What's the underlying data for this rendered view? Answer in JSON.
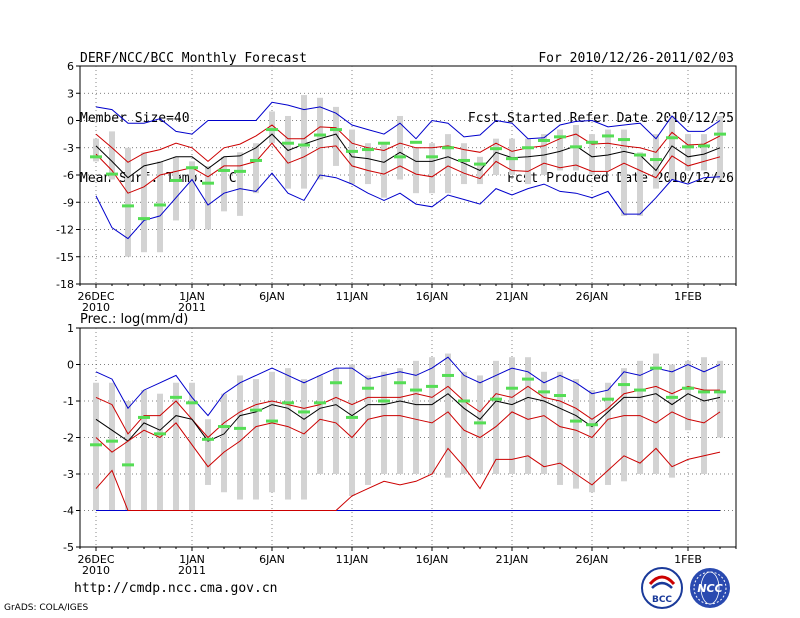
{
  "header": {
    "title": "DERF/NCC/BCC Monthly Forecast",
    "member_size": "Member Size=40",
    "period": "For 2010/12/26-2011/02/03",
    "start_date": "Fcst Started Refer Date 2010/12/25",
    "produced_date": "Fcst Produced Date 2010/12/26"
  },
  "footer": {
    "url": "http://cmdp.ncc.cma.gov.cn",
    "credit": "GrADS: COLA/IGES",
    "logos": [
      "BCC",
      "NCC"
    ]
  },
  "colors": {
    "envelope": "#0000cc",
    "spread": "#cc0000",
    "mean": "#000000",
    "box": "#d3d3d3",
    "marker": "#55dd55",
    "grid": "#555555"
  },
  "chart_data": [
    {
      "type": "line",
      "title": "Mean Surf. Temp.: °C",
      "ylim": [
        -18,
        6
      ],
      "yticks": [
        6,
        3,
        0,
        -3,
        -6,
        -9,
        -12,
        -15,
        -18
      ],
      "xlim": [
        25,
        66
      ],
      "xticks": [
        {
          "day": 26,
          "label": "26DEC",
          "sub": "2010"
        },
        {
          "day": 32,
          "label": "1JAN",
          "sub": "2011"
        },
        {
          "day": 37,
          "label": "6JAN",
          "sub": ""
        },
        {
          "day": 42,
          "label": "11JAN",
          "sub": ""
        },
        {
          "day": 47,
          "label": "16JAN",
          "sub": ""
        },
        {
          "day": 52,
          "label": "21JAN",
          "sub": ""
        },
        {
          "day": 57,
          "label": "26JAN",
          "sub": ""
        },
        {
          "day": 63,
          "label": "1FEB",
          "sub": ""
        }
      ],
      "days": [
        26,
        27,
        28,
        29,
        30,
        31,
        32,
        33,
        34,
        35,
        36,
        37,
        38,
        39,
        40,
        41,
        42,
        43,
        44,
        45,
        46,
        47,
        48,
        49,
        50,
        51,
        52,
        53,
        54,
        55,
        56,
        57,
        58,
        59,
        60,
        61,
        62,
        63,
        64,
        65
      ],
      "series": [
        {
          "name": "max",
          "color": "envelope",
          "values": [
            1.5,
            1.2,
            -0.3,
            -0.3,
            0.2,
            -1.2,
            -1.5,
            0.0,
            0.0,
            0.0,
            0.0,
            2.0,
            1.7,
            1.2,
            1.5,
            0.8,
            -0.5,
            -1.0,
            -1.5,
            -0.3,
            -2.0,
            0.0,
            -0.3,
            -1.8,
            -1.6,
            0.0,
            -0.3,
            -2.0,
            -1.9,
            -0.5,
            -0.1,
            0.0,
            -0.7,
            -0.5,
            -0.3,
            -2.0,
            0.5,
            -1.2,
            -1.2,
            0.0
          ]
        },
        {
          "name": "upper",
          "color": "spread",
          "values": [
            -1.5,
            -3.0,
            -4.6,
            -3.6,
            -3.2,
            -2.5,
            -3.0,
            -4.5,
            -3.0,
            -2.6,
            -1.7,
            -0.5,
            -2.0,
            -2.0,
            -0.7,
            -0.8,
            -2.5,
            -3.0,
            -3.3,
            -2.5,
            -3.0,
            -3.0,
            -2.8,
            -3.2,
            -3.5,
            -2.5,
            -3.4,
            -3.0,
            -2.8,
            -2.0,
            -1.5,
            -2.6,
            -2.5,
            -2.8,
            -3.0,
            -3.5,
            -1.3,
            -2.7,
            -2.6,
            -1.7
          ]
        },
        {
          "name": "mean",
          "color": "mean",
          "values": [
            -2.8,
            -4.5,
            -6.3,
            -5.0,
            -4.6,
            -4.0,
            -4.0,
            -5.3,
            -4.0,
            -3.9,
            -3.0,
            -1.5,
            -3.3,
            -2.6,
            -2.0,
            -1.5,
            -4.0,
            -4.2,
            -4.6,
            -3.5,
            -4.5,
            -4.5,
            -4.0,
            -4.7,
            -5.5,
            -3.5,
            -4.1,
            -4.0,
            -3.8,
            -3.4,
            -2.8,
            -4.0,
            -3.8,
            -3.4,
            -3.8,
            -5.5,
            -2.8,
            -4.0,
            -3.7,
            -3.0
          ]
        },
        {
          "name": "lower",
          "color": "spread",
          "values": [
            -3.7,
            -5.5,
            -8.0,
            -7.3,
            -6.0,
            -5.6,
            -5.2,
            -6.2,
            -5.0,
            -5.0,
            -4.5,
            -2.5,
            -4.7,
            -4.0,
            -3.0,
            -2.8,
            -5.0,
            -5.5,
            -5.9,
            -5.0,
            -5.9,
            -6.2,
            -5.0,
            -5.8,
            -6.4,
            -4.5,
            -5.5,
            -5.6,
            -4.7,
            -5.2,
            -4.9,
            -5.6,
            -5.6,
            -4.7,
            -5.5,
            -6.3,
            -3.9,
            -5.0,
            -4.5,
            -4.0
          ]
        },
        {
          "name": "min",
          "color": "envelope",
          "values": [
            -8.3,
            -11.8,
            -13.0,
            -11.0,
            -10.5,
            -8.5,
            -6.5,
            -9.3,
            -8.0,
            -7.5,
            -7.8,
            -5.8,
            -8.0,
            -8.8,
            -6.0,
            -6.3,
            -7.0,
            -8.0,
            -8.8,
            -8.0,
            -9.2,
            -9.5,
            -8.2,
            -8.7,
            -9.2,
            -7.5,
            -8.2,
            -7.5,
            -7.0,
            -7.8,
            -8.0,
            -8.5,
            -7.8,
            -10.3,
            -10.3,
            -8.5,
            -6.5,
            -7.0,
            -6.3,
            -6.2
          ]
        }
      ],
      "boxes": [
        [
          -4.5,
          -2.0
        ],
        [
          -6.5,
          -1.2
        ],
        [
          -15.0,
          -3.0
        ],
        [
          -14.5,
          -3.5
        ],
        [
          -14.5,
          -4.5
        ],
        [
          -11.0,
          -4.0
        ],
        [
          -12.0,
          -4.5
        ],
        [
          -12.0,
          -5.0
        ],
        [
          -10.0,
          -4.0
        ],
        [
          -10.5,
          -3.5
        ],
        [
          -8.0,
          -2.5
        ],
        [
          -2.5,
          1.0
        ],
        [
          -7.5,
          0.5
        ],
        [
          -7.5,
          2.8
        ],
        [
          -6.5,
          2.5
        ],
        [
          -5.0,
          1.5
        ],
        [
          -7.0,
          -1.0
        ],
        [
          -7.0,
          -2.5
        ],
        [
          -8.5,
          -2.5
        ],
        [
          -6.5,
          0.5
        ],
        [
          -8.0,
          -3.0
        ],
        [
          -8.0,
          -2.5
        ],
        [
          -8.0,
          -1.5
        ],
        [
          -7.0,
          -2.5
        ],
        [
          -7.0,
          -4.0
        ],
        [
          -6.0,
          -2.0
        ],
        [
          -6.0,
          -2.0
        ],
        [
          -7.0,
          -2.0
        ],
        [
          -6.0,
          -1.5
        ],
        [
          -5.5,
          -1.0
        ],
        [
          -5.5,
          -0.5
        ],
        [
          -6.0,
          -1.5
        ],
        [
          -5.5,
          -1.0
        ],
        [
          -10.5,
          -1.0
        ],
        [
          -10.5,
          -3.5
        ],
        [
          -7.5,
          -1.5
        ],
        [
          -6.5,
          0.5
        ],
        [
          -5.5,
          -1.5
        ],
        [
          -5.5,
          -1.5
        ],
        [
          -6.5,
          0.5
        ]
      ],
      "markers": [
        -4.0,
        -5.9,
        -9.4,
        -10.8,
        -9.3,
        -6.6,
        -5.2,
        -6.9,
        -5.5,
        -5.6,
        -4.4,
        -1.0,
        -2.5,
        -2.7,
        -1.6,
        -1.0,
        -3.4,
        -3.2,
        -2.5,
        -4.0,
        -2.4,
        -4.0,
        -3.0,
        -4.4,
        -4.8,
        -3.1,
        -4.2,
        -3.0,
        -2.2,
        -1.8,
        -2.9,
        -2.4,
        -1.7,
        -2.1,
        -3.8,
        -4.3,
        -1.9,
        -2.9,
        -2.8,
        -1.5
      ]
    },
    {
      "type": "line",
      "title": "Prec.: log(mm/d)",
      "ylim": [
        -5,
        1
      ],
      "yticks": [
        1,
        0,
        -1,
        -2,
        -3,
        -4,
        -5
      ],
      "xlim": [
        25,
        66
      ],
      "xticks": [
        {
          "day": 26,
          "label": "26DEC",
          "sub": "2010"
        },
        {
          "day": 32,
          "label": "1JAN",
          "sub": "2011"
        },
        {
          "day": 37,
          "label": "6JAN",
          "sub": ""
        },
        {
          "day": 42,
          "label": "11JAN",
          "sub": ""
        },
        {
          "day": 47,
          "label": "16JAN",
          "sub": ""
        },
        {
          "day": 52,
          "label": "21JAN",
          "sub": ""
        },
        {
          "day": 57,
          "label": "26JAN",
          "sub": ""
        },
        {
          "day": 63,
          "label": "1FEB",
          "sub": ""
        }
      ],
      "days": [
        26,
        27,
        28,
        29,
        30,
        31,
        32,
        33,
        34,
        35,
        36,
        37,
        38,
        39,
        40,
        41,
        42,
        43,
        44,
        45,
        46,
        47,
        48,
        49,
        50,
        51,
        52,
        53,
        54,
        55,
        56,
        57,
        58,
        59,
        60,
        61,
        62,
        63,
        64,
        65
      ],
      "series": [
        {
          "name": "max",
          "color": "envelope",
          "values": [
            -0.2,
            -0.4,
            -1.2,
            -0.7,
            -0.5,
            -0.3,
            -0.9,
            -1.4,
            -0.8,
            -0.5,
            -0.3,
            -0.1,
            -0.3,
            -0.5,
            -0.3,
            -0.1,
            -0.1,
            -0.4,
            -0.3,
            -0.2,
            -0.3,
            -0.1,
            0.2,
            -0.3,
            -0.5,
            -0.3,
            -0.1,
            -0.2,
            -0.5,
            -0.3,
            -0.5,
            -0.8,
            -0.7,
            -0.2,
            -0.3,
            -0.1,
            -0.2,
            0.0,
            -0.2,
            0.0
          ]
        },
        {
          "name": "upper",
          "color": "spread",
          "values": [
            -0.9,
            -1.1,
            -1.9,
            -1.4,
            -1.4,
            -1.0,
            -1.5,
            -2.0,
            -1.6,
            -1.3,
            -1.1,
            -1.0,
            -1.1,
            -1.2,
            -1.1,
            -0.9,
            -1.1,
            -0.9,
            -0.9,
            -0.9,
            -0.8,
            -0.9,
            -0.6,
            -1.0,
            -1.3,
            -0.8,
            -0.9,
            -0.6,
            -0.9,
            -1.0,
            -1.2,
            -1.5,
            -1.2,
            -0.8,
            -0.7,
            -0.6,
            -0.8,
            -0.6,
            -0.7,
            -0.7
          ]
        },
        {
          "name": "mean",
          "color": "mean",
          "values": [
            -1.5,
            -1.8,
            -2.1,
            -1.6,
            -1.8,
            -1.4,
            -1.5,
            -2.1,
            -1.9,
            -1.4,
            -1.3,
            -1.1,
            -1.2,
            -1.5,
            -1.2,
            -1.1,
            -1.4,
            -1.1,
            -1.1,
            -1.0,
            -1.1,
            -1.1,
            -0.8,
            -1.2,
            -1.5,
            -1.0,
            -1.1,
            -0.9,
            -1.0,
            -1.2,
            -1.4,
            -1.7,
            -1.3,
            -0.9,
            -0.9,
            -0.8,
            -1.1,
            -0.8,
            -1.0,
            -0.9
          ]
        },
        {
          "name": "lower",
          "color": "spread",
          "values": [
            -2.0,
            -2.4,
            -2.1,
            -1.8,
            -2.0,
            -1.6,
            -2.2,
            -2.8,
            -2.4,
            -2.1,
            -1.7,
            -1.6,
            -1.7,
            -1.9,
            -1.5,
            -1.6,
            -2.0,
            -1.5,
            -1.4,
            -1.4,
            -1.5,
            -1.6,
            -1.3,
            -1.8,
            -2.0,
            -1.7,
            -1.3,
            -1.5,
            -1.4,
            -1.7,
            -1.8,
            -2.0,
            -1.5,
            -1.4,
            -1.4,
            -1.6,
            -1.3,
            -1.5,
            -1.6,
            -1.3
          ]
        },
        {
          "name": "min",
          "color": "envelope",
          "values": [
            -4.0,
            -4.0,
            -4.0,
            -4.0,
            -4.0,
            -4.0,
            -4.0,
            -4.0,
            -4.0,
            -4.0,
            -4.0,
            -4.0,
            -4.0,
            -4.0,
            -4.0,
            -4.0,
            -4.0,
            -4.0,
            -4.0,
            -4.0,
            -4.0,
            -4.0,
            -4.0,
            -4.0,
            -4.0,
            -4.0,
            -4.0,
            -4.0,
            -4.0,
            -4.0,
            -4.0,
            -4.0,
            -4.0,
            -4.0,
            -4.0,
            -4.0,
            -4.0,
            -4.0,
            -4.0,
            -4.0
          ]
        },
        {
          "name": "min_estimate",
          "color": "spread",
          "values": [
            -3.4,
            -2.9,
            -4.0,
            -4.0,
            -4.0,
            -4.0,
            -4.0,
            -4.0,
            -4.0,
            -4.0,
            -4.0,
            -4.0,
            -4.0,
            -4.0,
            -4.0,
            -4.0,
            -3.6,
            -3.4,
            -3.2,
            -3.3,
            -3.2,
            -3.0,
            -2.3,
            -2.8,
            -3.4,
            -2.6,
            -2.6,
            -2.5,
            -2.8,
            -2.7,
            -3.0,
            -3.3,
            -2.9,
            -2.5,
            -2.7,
            -2.3,
            -2.8,
            -2.6,
            -2.5,
            -2.4
          ]
        }
      ],
      "boxes": [
        [
          -4.0,
          -0.5
        ],
        [
          -4.0,
          -0.5
        ],
        [
          -4.0,
          -1.0
        ],
        [
          -4.0,
          -0.7
        ],
        [
          -4.0,
          -0.8
        ],
        [
          -4.0,
          -0.5
        ],
        [
          -4.0,
          -0.5
        ],
        [
          -3.3,
          -1.5
        ],
        [
          -3.5,
          -0.8
        ],
        [
          -3.7,
          -0.3
        ],
        [
          -3.7,
          -0.4
        ],
        [
          -3.5,
          -0.2
        ],
        [
          -3.7,
          -0.1
        ],
        [
          -3.7,
          -0.4
        ],
        [
          -3.0,
          -0.3
        ],
        [
          -3.0,
          -0.1
        ],
        [
          -3.6,
          0.0
        ],
        [
          -3.3,
          -0.3
        ],
        [
          -3.0,
          -0.2
        ],
        [
          -3.0,
          -0.1
        ],
        [
          -3.0,
          0.1
        ],
        [
          -3.0,
          0.2
        ],
        [
          -3.1,
          0.3
        ],
        [
          -3.0,
          -0.2
        ],
        [
          -3.0,
          -0.3
        ],
        [
          -3.0,
          0.1
        ],
        [
          -3.0,
          0.2
        ],
        [
          -3.0,
          0.2
        ],
        [
          -3.0,
          -0.2
        ],
        [
          -3.3,
          -0.2
        ],
        [
          -3.4,
          -0.4
        ],
        [
          -3.5,
          -0.7
        ],
        [
          -3.3,
          -0.5
        ],
        [
          -3.2,
          -0.1
        ],
        [
          -3.0,
          0.1
        ],
        [
          -3.0,
          0.3
        ],
        [
          -3.1,
          0.0
        ],
        [
          -1.8,
          0.1
        ],
        [
          -3.0,
          0.2
        ],
        [
          -2.0,
          0.1
        ]
      ],
      "markers": [
        -2.2,
        -2.1,
        -2.75,
        -1.45,
        -1.9,
        -0.9,
        -1.05,
        -2.05,
        -1.7,
        -1.75,
        -1.25,
        -1.55,
        -1.05,
        -1.3,
        -1.05,
        -0.5,
        -1.45,
        -0.65,
        -1.0,
        -0.5,
        -0.7,
        -0.6,
        -0.3,
        -1.0,
        -1.6,
        -0.95,
        -0.65,
        -0.4,
        -0.75,
        -0.85,
        -1.55,
        -1.65,
        -0.95,
        -0.55,
        -0.7,
        -0.1,
        -0.9,
        -0.65,
        -0.75,
        -0.75
      ]
    }
  ]
}
